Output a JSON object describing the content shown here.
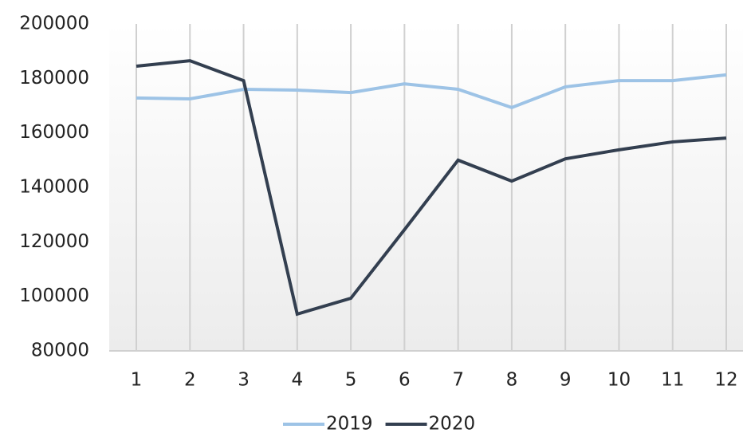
{
  "chart_data": {
    "type": "line",
    "categories": [
      "1",
      "2",
      "3",
      "4",
      "5",
      "6",
      "7",
      "8",
      "9",
      "10",
      "11",
      "12"
    ],
    "series": [
      {
        "name": "2019",
        "color": "#9dc3e6",
        "values": [
          172800,
          172500,
          176000,
          175700,
          174800,
          178000,
          176000,
          169300,
          176900,
          179200,
          179200,
          181300
        ]
      },
      {
        "name": "2020",
        "color": "#333f50",
        "values": [
          184500,
          186500,
          179200,
          93500,
          99300,
          124500,
          150000,
          142300,
          150500,
          153800,
          156700,
          158100
        ]
      }
    ],
    "ylim": [
      80000,
      200000
    ],
    "yticks": [
      80000,
      100000,
      120000,
      140000,
      160000,
      180000,
      200000
    ],
    "grid": true,
    "legend": "bottom"
  }
}
